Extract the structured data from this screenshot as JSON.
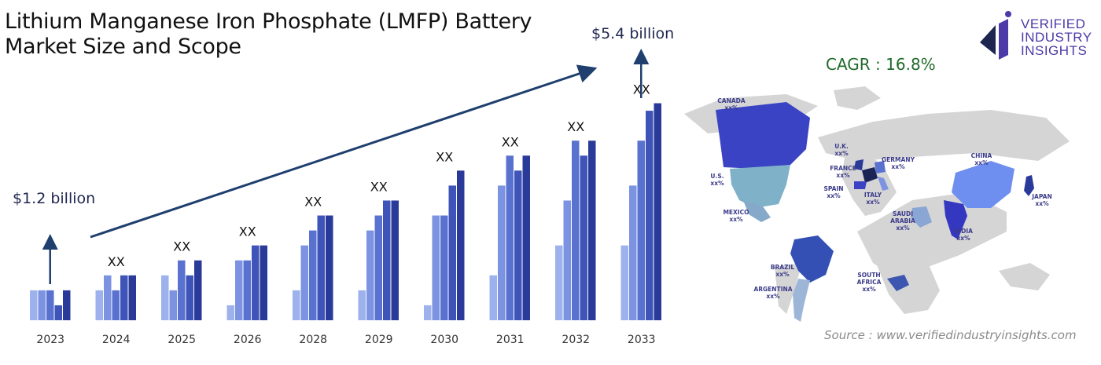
{
  "title_lines": [
    "Lithium Manganese Iron Phosphate (LMFP) Battery",
    "Market Size and Scope"
  ],
  "logo": {
    "lines": [
      "VERIFIED",
      "INDUSTRY",
      "INSIGHTS"
    ],
    "color": "#4b3aa8"
  },
  "cagr": "CAGR : 16.8%",
  "source": "Source : www.verifiedindustryinsights.com",
  "colors": {
    "accent": "#1f3f6e",
    "bar_shades": [
      "#9db2ec",
      "#7b93e0",
      "#5a72cf",
      "#3f54b8",
      "#2a3a99"
    ],
    "cagr_text": "#1f6a2a"
  },
  "chart_data": {
    "type": "bar",
    "categories": [
      "2023",
      "2024",
      "2025",
      "2026",
      "2028",
      "2029",
      "2030",
      "2031",
      "2032",
      "2033"
    ],
    "bar_labels": [
      "",
      "XX",
      "XX",
      "XX",
      "XX",
      "XX",
      "XX",
      "XX",
      "XX",
      "XX"
    ],
    "start_label": "$1.2 billion",
    "end_label": "$5.4 billion",
    "grouped_values": [
      [
        2,
        2,
        2,
        1,
        2
      ],
      [
        2,
        3,
        2,
        3,
        3
      ],
      [
        3,
        2,
        4,
        3,
        4
      ],
      [
        1,
        4,
        4,
        5,
        5
      ],
      [
        2,
        5,
        6,
        7,
        7
      ],
      [
        2,
        6,
        7,
        8,
        8
      ],
      [
        1,
        7,
        7,
        9,
        10
      ],
      [
        3,
        9,
        11,
        10,
        11
      ],
      [
        5,
        8,
        12,
        11,
        12
      ],
      [
        5,
        9,
        12,
        14,
        14.5
      ]
    ],
    "ylim": [
      0,
      15
    ]
  },
  "map": {
    "regions": [
      {
        "name": "CANADA",
        "value": "xx%",
        "color": "#3a43c4"
      },
      {
        "name": "U.S.",
        "value": "xx%",
        "color": "#7fb2c9"
      },
      {
        "name": "MEXICO",
        "value": "xx%",
        "color": "#86a9c9"
      },
      {
        "name": "BRAZIL",
        "value": "xx%",
        "color": "#3550b5"
      },
      {
        "name": "ARGENTINA",
        "value": "xx%",
        "color": "#9db6d8"
      },
      {
        "name": "U.K.",
        "value": "xx%",
        "color": "#2a3a99"
      },
      {
        "name": "FRANCE",
        "value": "xx%",
        "color": "#1a2455"
      },
      {
        "name": "GERMANY",
        "value": "xx%",
        "color": "#5a72cf"
      },
      {
        "name": "SPAIN",
        "value": "xx%",
        "color": "#3a43c4"
      },
      {
        "name": "ITALY",
        "value": "xx%",
        "color": "#7b93e0"
      },
      {
        "name": "SAUDI ARABIA",
        "value": "xx%",
        "color": "#8aa6d4"
      },
      {
        "name": "SOUTH AFRICA",
        "value": "xx%",
        "color": "#3d57b0"
      },
      {
        "name": "CHINA",
        "value": "xx%",
        "color": "#6f8ff0"
      },
      {
        "name": "INDIA",
        "value": "xx%",
        "color": "#3438c0"
      },
      {
        "name": "JAPAN",
        "value": "xx%",
        "color": "#2a3a99"
      }
    ]
  }
}
